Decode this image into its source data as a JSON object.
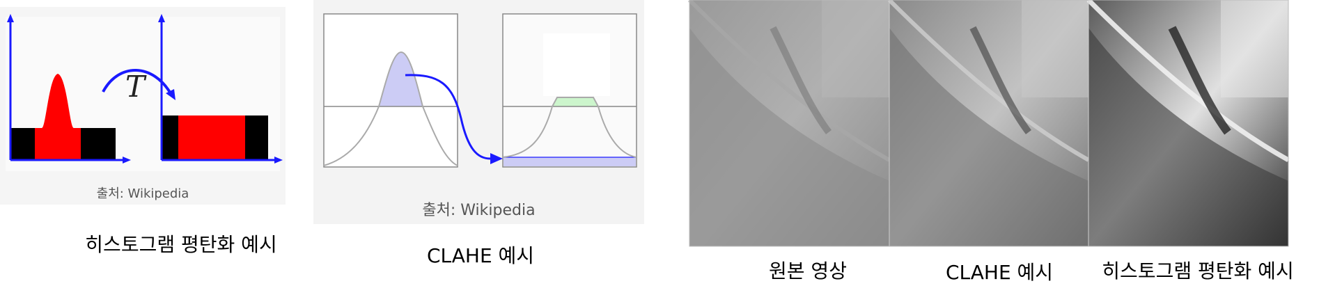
{
  "panels": {
    "histogram_eq": {
      "credit": "출처: Wikipedia",
      "transform_symbol": "T",
      "caption": "히스토그램 평탄화 예시"
    },
    "clahe": {
      "credit": "출처: Wikipedia",
      "caption": "CLAHE 예시"
    },
    "photos": {
      "captions": [
        "원본 영상",
        "CLAHE 예시",
        "히스토그램 평탄화 예시"
      ]
    }
  },
  "colors": {
    "axis_blue": "#1a1aff",
    "histogram_red": "#ff0000",
    "histogram_black": "#000000",
    "curve_grey": "#aaaaaa",
    "fill_lavender": "#ccccf5",
    "fill_green": "#ccf5cc",
    "clip_line": "#888888"
  }
}
